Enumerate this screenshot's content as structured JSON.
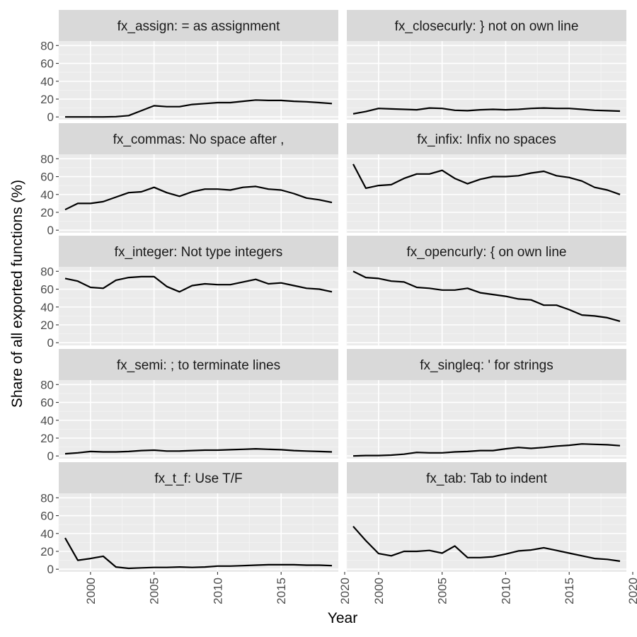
{
  "chart_data": {
    "type": "line",
    "facet_layout": "5 rows x 2 columns",
    "xlabel": "Year",
    "ylabel": "Share of all exported functions (%)",
    "xlim": [
      1997.5,
      2019.5
    ],
    "ylim": [
      -3,
      85
    ],
    "x_ticks": [
      2000,
      2005,
      2010,
      2015,
      2020
    ],
    "y_ticks": [
      0,
      20,
      40,
      60,
      80
    ],
    "grid": true,
    "colors": {
      "panel_background": "#ebebeb",
      "grid_major": "#ffffff",
      "grid_minor": "#f5f5f5",
      "strip_background": "#d9d9d9",
      "line": "#000000"
    },
    "x": [
      1998,
      1999,
      2000,
      2001,
      2002,
      2003,
      2004,
      2005,
      2006,
      2007,
      2008,
      2009,
      2010,
      2011,
      2012,
      2013,
      2014,
      2015,
      2016,
      2017,
      2018,
      2019
    ],
    "facets": [
      {
        "title": "fx_assign: = as assignment",
        "values": [
          0,
          0,
          0,
          0,
          0.3,
          1.5,
          7,
          12.5,
          11.5,
          11.5,
          14,
          15,
          16,
          16,
          17.5,
          19,
          18.5,
          18.5,
          17.5,
          17,
          16,
          15
        ]
      },
      {
        "title": "fx_closecurly: } not on own line",
        "values": [
          3.5,
          6,
          9.5,
          9,
          8.5,
          8,
          10,
          9.5,
          7.5,
          7,
          8,
          8.5,
          8,
          8.5,
          9.5,
          10,
          9.5,
          9.5,
          8.5,
          7.5,
          7,
          6.5
        ]
      },
      {
        "title": "fx_commas: No space after ,",
        "values": [
          23,
          30,
          30,
          32,
          37,
          42,
          43,
          48,
          42,
          38,
          43,
          46,
          46,
          45,
          48,
          49,
          46,
          45,
          41,
          36,
          34,
          31
        ]
      },
      {
        "title": "fx_infix: Infix no spaces",
        "values": [
          74,
          47,
          50,
          51,
          58,
          63,
          63,
          67,
          58,
          52,
          57,
          60,
          60,
          61,
          64,
          66,
          61,
          59,
          55,
          48,
          45,
          40
        ]
      },
      {
        "title": "fx_integer: Not type integers",
        "values": [
          72,
          69,
          62,
          61,
          70,
          73,
          74,
          74,
          63,
          57,
          64,
          66,
          65,
          65,
          68,
          71,
          66,
          67,
          64,
          61,
          60,
          57
        ]
      },
      {
        "title": "fx_opencurly: { on own line",
        "values": [
          80,
          73,
          72,
          69,
          68,
          62,
          61,
          59,
          59,
          61,
          56,
          54,
          52,
          49,
          48,
          42,
          42,
          37,
          31,
          30,
          28,
          24
        ]
      },
      {
        "title": "fx_semi: ; to terminate lines",
        "values": [
          2.5,
          3.5,
          5,
          4.5,
          4.5,
          5,
          6,
          6.5,
          5.5,
          5.5,
          6,
          6.5,
          6.5,
          7,
          7.5,
          8,
          7.5,
          7,
          6,
          5.5,
          5,
          4.5
        ]
      },
      {
        "title": "fx_singleq: ' for strings",
        "values": [
          0,
          0.5,
          0.5,
          1,
          2,
          4,
          3.5,
          3.5,
          4.5,
          5,
          6,
          6,
          8,
          9.5,
          8.5,
          9.5,
          11,
          12,
          13.5,
          13,
          12.5,
          11.5
        ]
      },
      {
        "title": "fx_t_f: Use T/F",
        "values": [
          35,
          10,
          12,
          14.5,
          2.5,
          1,
          1.5,
          2,
          2,
          2.5,
          2,
          2.5,
          3.5,
          3.5,
          4,
          4.5,
          5,
          5,
          5,
          4.5,
          4.5,
          4
        ]
      },
      {
        "title": "fx_tab: Tab to indent",
        "values": [
          48,
          32,
          17.5,
          15,
          20,
          20,
          21,
          18,
          26,
          13,
          13,
          14,
          17,
          20.5,
          21.5,
          24,
          21,
          18,
          15,
          12,
          11,
          9
        ]
      }
    ]
  }
}
